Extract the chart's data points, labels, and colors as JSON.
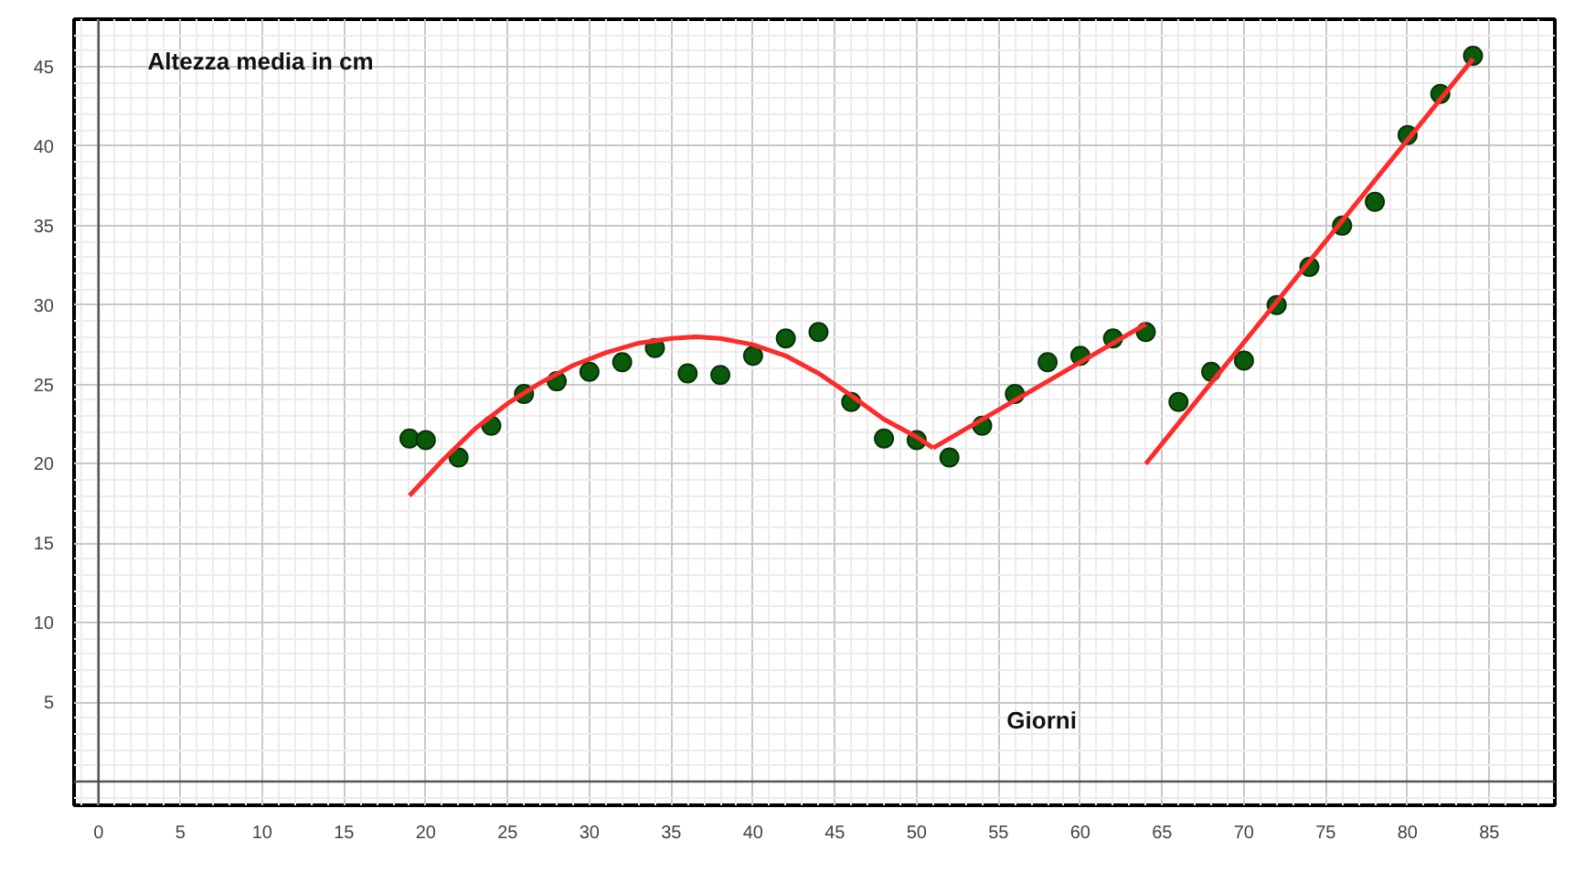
{
  "chart_data": {
    "type": "scatter",
    "xlabel": "Giorni",
    "ylabel": "Altezza media in cm",
    "xlim": [
      -1.5,
      89
    ],
    "ylim": [
      -1.5,
      48
    ],
    "xticks": [
      0,
      5,
      10,
      15,
      20,
      25,
      30,
      35,
      40,
      45,
      50,
      55,
      60,
      65,
      70,
      75,
      80,
      85
    ],
    "yticks": [
      5,
      10,
      15,
      20,
      25,
      30,
      35,
      40,
      45
    ],
    "grid": true,
    "series": [
      {
        "marker": "circle",
        "color": "#0b5a0b",
        "x": [
          19,
          20,
          22,
          24,
          26,
          28,
          30,
          32,
          34,
          36,
          38,
          40,
          42,
          44,
          46,
          48,
          50,
          52,
          54,
          56,
          58,
          60,
          62,
          64,
          66,
          68,
          70,
          72,
          74,
          76,
          78,
          80,
          82,
          84
        ],
        "values": [
          21.6,
          21.5,
          20.4,
          22.4,
          24.4,
          25.2,
          25.8,
          26.4,
          27.3,
          25.7,
          25.6,
          26.8,
          27.9,
          28.3,
          23.9,
          21.6,
          21.5,
          20.4,
          22.4,
          24.4,
          26.4,
          26.8,
          27.9,
          28.3,
          23.9,
          25.8,
          26.5,
          30,
          32.4,
          35,
          36.5,
          40.7,
          43.3,
          45.7
        ]
      },
      {
        "type": "line",
        "color": "#ff2a2a",
        "x": [
          19,
          21,
          23,
          25,
          27,
          29,
          31,
          33,
          35,
          36.5,
          38,
          40,
          42,
          44,
          46,
          48,
          50,
          51
        ],
        "values": [
          18,
          20.2,
          22.2,
          23.8,
          25.1,
          26.2,
          27,
          27.6,
          27.9,
          28,
          27.9,
          27.5,
          26.8,
          25.7,
          24.3,
          22.8,
          21.7,
          21
        ]
      },
      {
        "type": "line",
        "color": "#ff2a2a",
        "x": [
          51,
          64
        ],
        "values": [
          21,
          28.8
        ]
      },
      {
        "type": "line",
        "color": "#ff2a2a",
        "x": [
          64,
          84
        ],
        "values": [
          20,
          45.5
        ]
      }
    ]
  }
}
